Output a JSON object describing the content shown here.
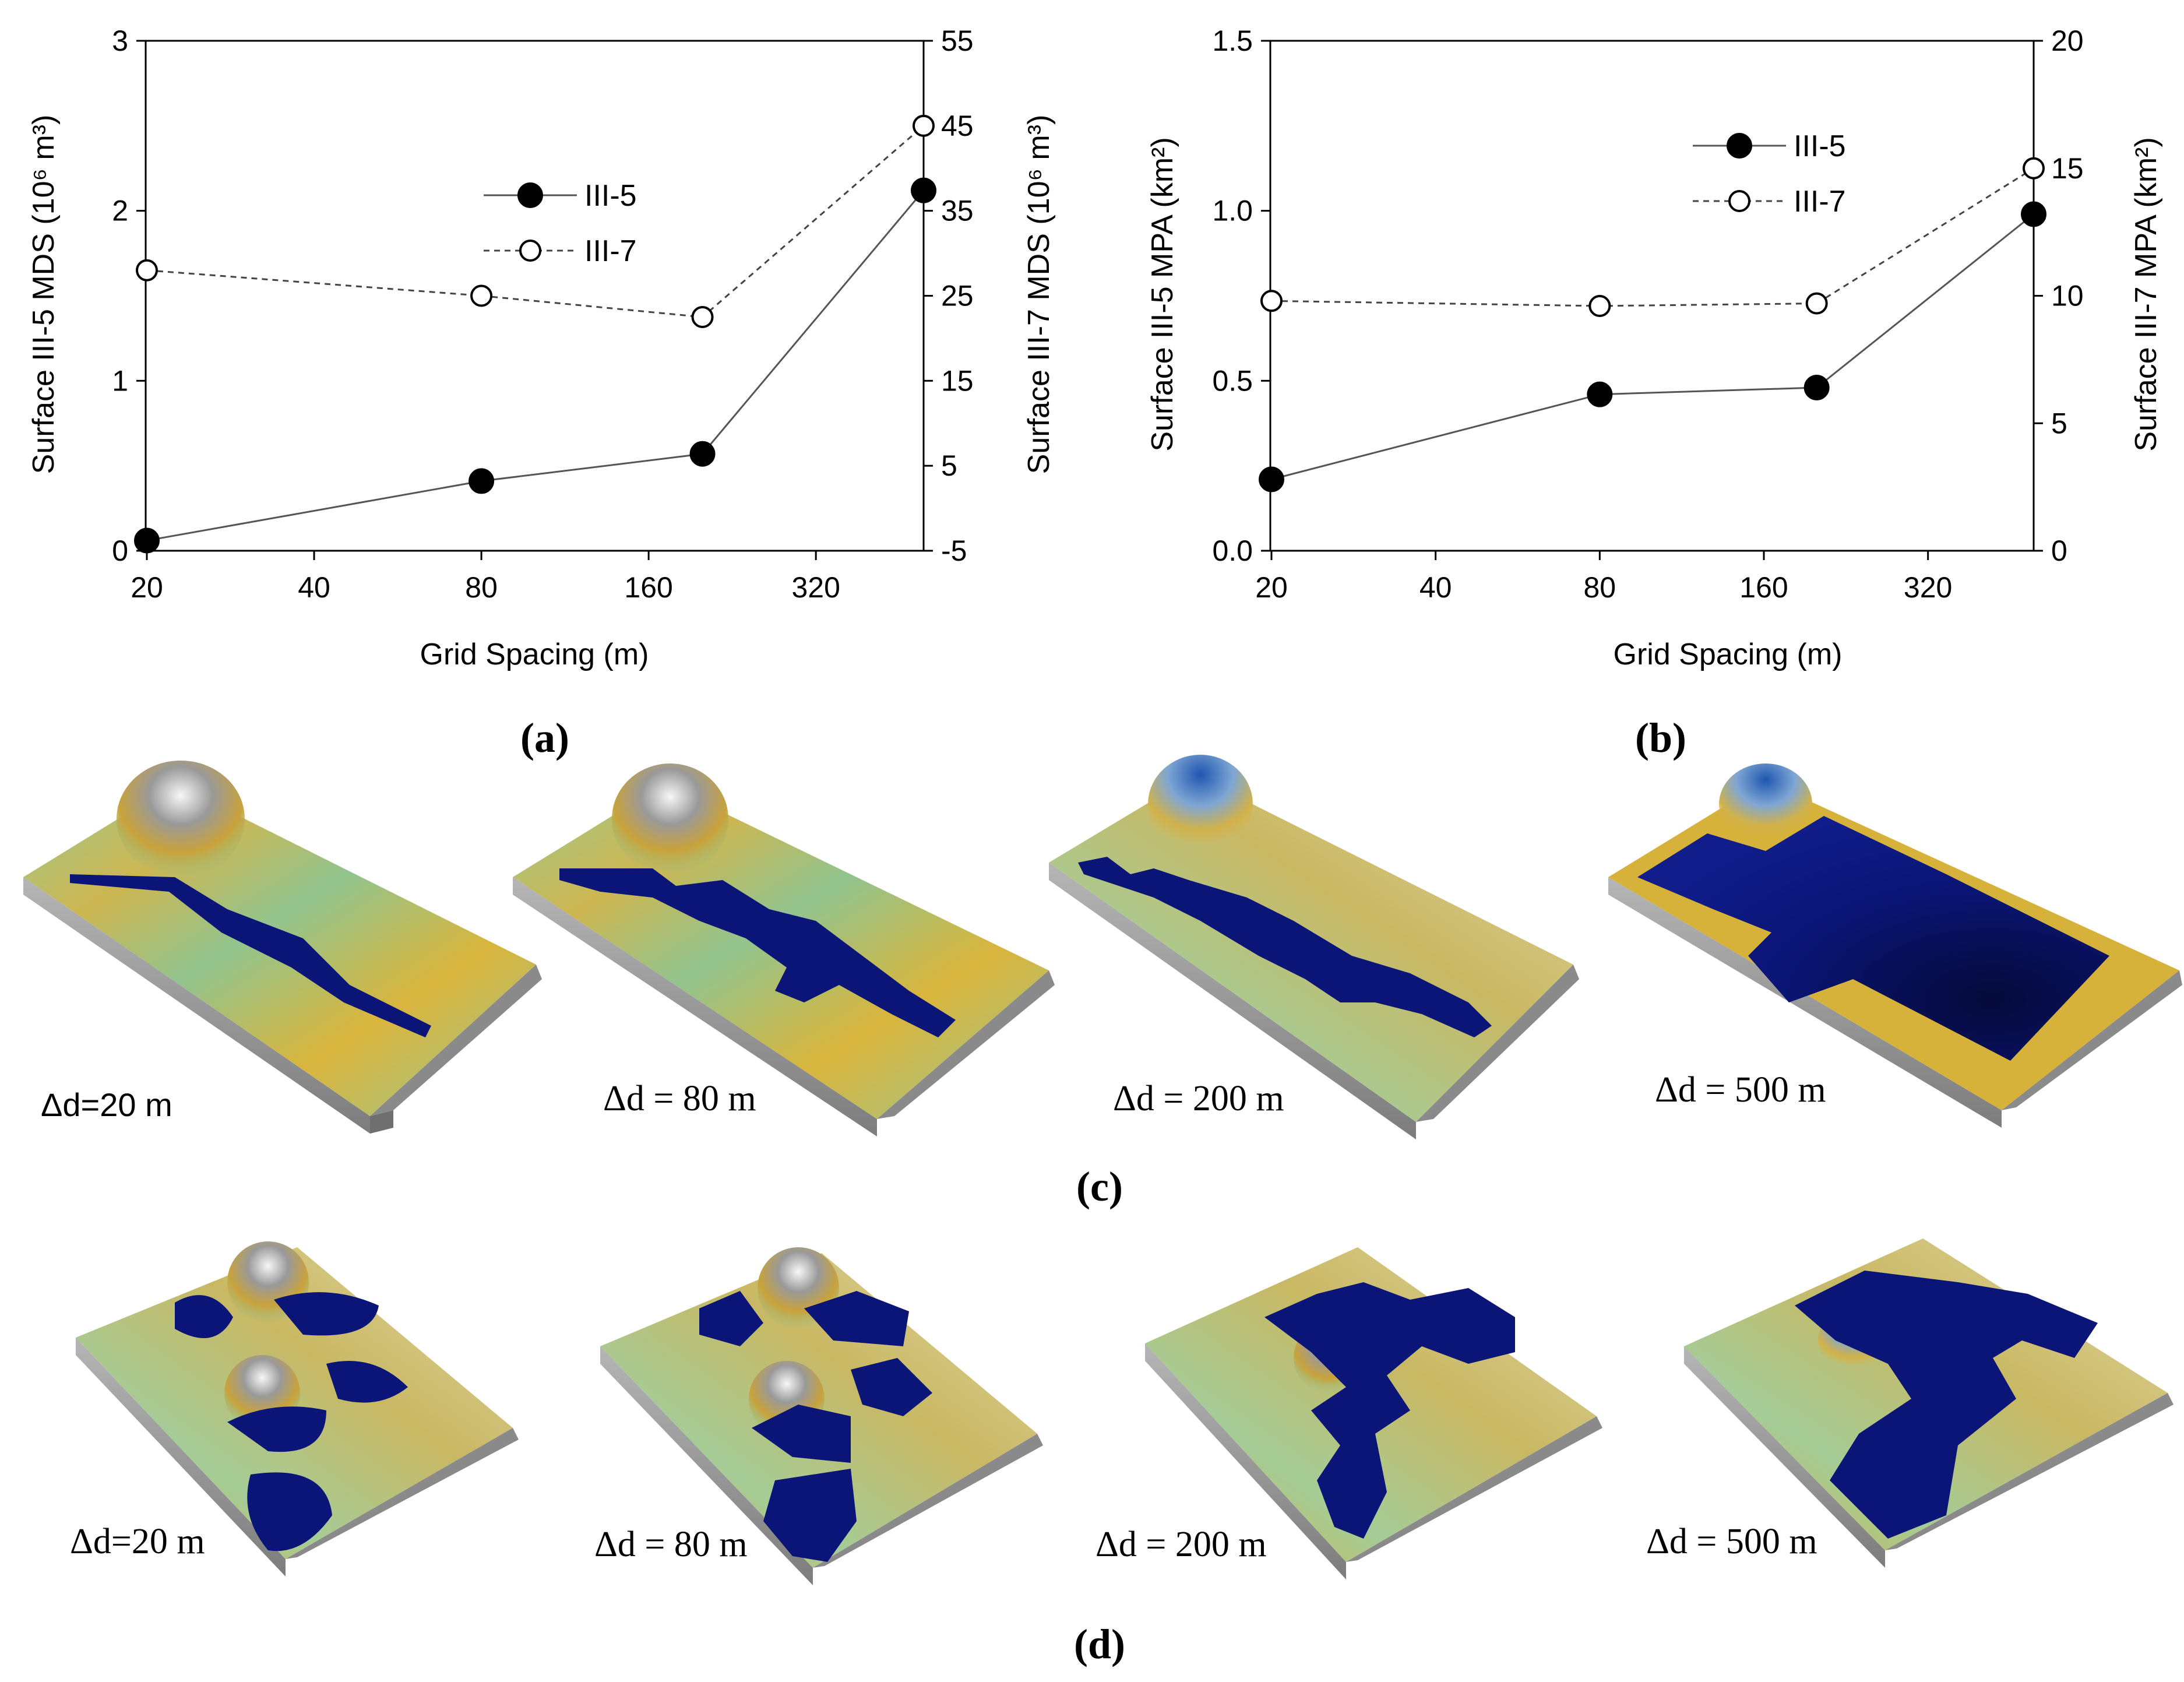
{
  "panel_labels": {
    "a": "(a)",
    "b": "(b)",
    "c": "(c)",
    "d": "(d)"
  },
  "chart_data": [
    {
      "id": "a",
      "type": "line",
      "xlabel": "Grid Spacing (m)",
      "xscale": "log2",
      "xticks": [
        20,
        40,
        80,
        160,
        320
      ],
      "xtick_labels": [
        "20",
        "40",
        "80",
        "160",
        "320"
      ],
      "xlim": [
        20,
        500
      ],
      "y_left": {
        "label": "Surface III-5 MDS (10⁶ m³)",
        "lim": [
          0,
          3
        ],
        "ticks": [
          0,
          1,
          2,
          3
        ],
        "tick_labels": [
          "0",
          "1",
          "2",
          "3"
        ]
      },
      "y_right": {
        "label": "Surface III-7 MDS (10⁶ m³)",
        "lim": [
          -5,
          55
        ],
        "ticks": [
          -5,
          5,
          15,
          25,
          35,
          45,
          55
        ],
        "tick_labels": [
          "-5",
          "5",
          "15",
          "25",
          "35",
          "45",
          "55"
        ]
      },
      "legend_position": "upper-middle",
      "series": [
        {
          "name": "III-5",
          "axis": "left",
          "marker": "filled-circle",
          "line": "solid",
          "x": [
            20,
            80,
            200,
            500
          ],
          "values": [
            0.06,
            0.41,
            0.57,
            2.12
          ]
        },
        {
          "name": "III-7",
          "axis": "right",
          "marker": "open-circle",
          "line": "dashed",
          "x": [
            20,
            80,
            200,
            500
          ],
          "values": [
            28,
            25,
            22.5,
            45
          ]
        }
      ]
    },
    {
      "id": "b",
      "type": "line",
      "xlabel": "Grid Spacing (m)",
      "xscale": "log2",
      "xticks": [
        20,
        40,
        80,
        160,
        320
      ],
      "xtick_labels": [
        "20",
        "40",
        "80",
        "160",
        "320"
      ],
      "xlim": [
        20,
        500
      ],
      "y_left": {
        "label": "Surface III-5 MPA (km²)",
        "lim": [
          0,
          1.5
        ],
        "ticks": [
          0,
          0.5,
          1.0,
          1.5
        ],
        "tick_labels": [
          "0.0",
          "0.5",
          "1.0",
          "1.5"
        ]
      },
      "y_right": {
        "label": "Surface III-7 MPA (km²)",
        "lim": [
          0,
          20
        ],
        "ticks": [
          0,
          5,
          10,
          15,
          20
        ],
        "tick_labels": [
          "0",
          "5",
          "10",
          "15",
          "20"
        ]
      },
      "legend_position": "upper-right",
      "series": [
        {
          "name": "III-5",
          "axis": "left",
          "marker": "filled-circle",
          "line": "solid",
          "x": [
            20,
            80,
            200,
            500
          ],
          "values": [
            0.21,
            0.46,
            0.48,
            0.99
          ]
        },
        {
          "name": "III-7",
          "axis": "right",
          "marker": "open-circle",
          "line": "dashed",
          "x": [
            20,
            80,
            200,
            500
          ],
          "values": [
            9.8,
            9.6,
            9.7,
            15
          ]
        }
      ]
    }
  ],
  "terrain_c": {
    "labels": [
      "Δd=20 m",
      "Δd = 80 m",
      "Δd = 200 m",
      "Δd = 500 m"
    ]
  },
  "terrain_d": {
    "labels": [
      "Δd=20 m",
      "Δd = 80 m",
      "Δd = 200 m",
      "Δd = 500 m"
    ]
  },
  "colors": {
    "water": "#0b1577",
    "water_dark": "#050a3a",
    "grass": "#8fc48c",
    "sand": "#d6b43a",
    "rock": "#e9e4cf",
    "peak_blue": "#2a6fc0",
    "base_gray": "#9a9a9a"
  }
}
